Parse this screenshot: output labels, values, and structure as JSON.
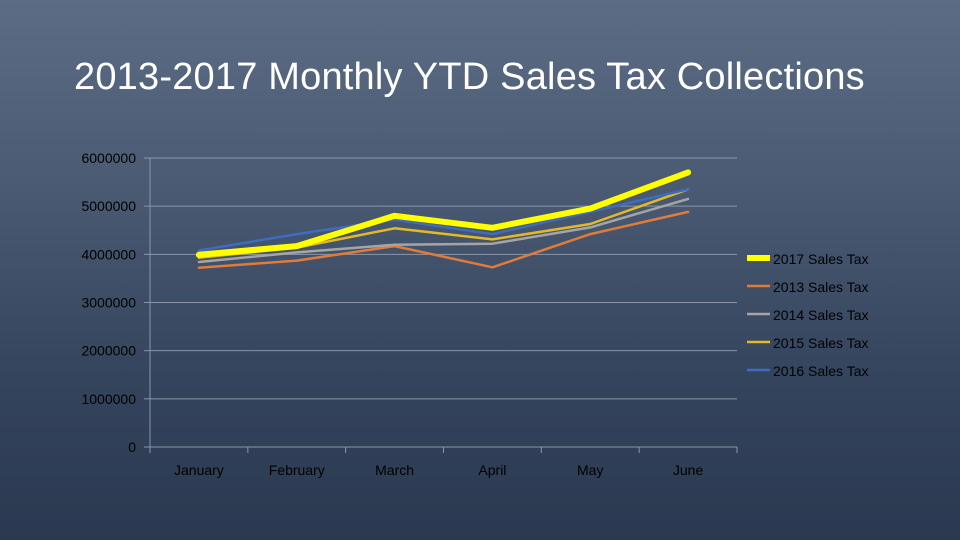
{
  "slide": {
    "title": "2013-2017 Monthly YTD Sales Tax Collections"
  },
  "chart_data": {
    "type": "line",
    "title": "2013-2017 Monthly YTD Sales Tax Collections",
    "xlabel": "",
    "ylabel": "",
    "categories": [
      "January",
      "February",
      "March",
      "April",
      "May",
      "June"
    ],
    "ylim": [
      0,
      6000000
    ],
    "yticks": [
      0,
      1000000,
      2000000,
      3000000,
      4000000,
      5000000,
      6000000
    ],
    "ytick_labels": [
      "0",
      "1000000",
      "2000000",
      "3000000",
      "4000000",
      "5000000",
      "6000000"
    ],
    "grid": true,
    "legend_position": "right",
    "series": [
      {
        "name": "2013 Sales Tax",
        "color": "#e07b39",
        "width": 2.5,
        "values": [
          3720000,
          3870000,
          4170000,
          3730000,
          4420000,
          4880000
        ]
      },
      {
        "name": "2014 Sales Tax",
        "color": "#a5a5a5",
        "width": 2.5,
        "values": [
          3840000,
          4040000,
          4200000,
          4220000,
          4560000,
          5150000
        ]
      },
      {
        "name": "2015 Sales Tax",
        "color": "#e2b92a",
        "width": 2.5,
        "values": [
          3930000,
          4140000,
          4540000,
          4310000,
          4630000,
          5350000
        ]
      },
      {
        "name": "2016 Sales Tax",
        "color": "#3e6cc0",
        "width": 2.5,
        "values": [
          4080000,
          4420000,
          4720000,
          4420000,
          4880000,
          5350000
        ]
      },
      {
        "name": "2017 Sales Tax",
        "color": "#ffff00",
        "width": 6,
        "values": [
          3990000,
          4170000,
          4800000,
          4550000,
          4950000,
          5700000
        ]
      }
    ],
    "legend_order": [
      "2017 Sales Tax",
      "2013 Sales Tax",
      "2014 Sales Tax",
      "2015 Sales Tax",
      "2016 Sales Tax"
    ]
  }
}
